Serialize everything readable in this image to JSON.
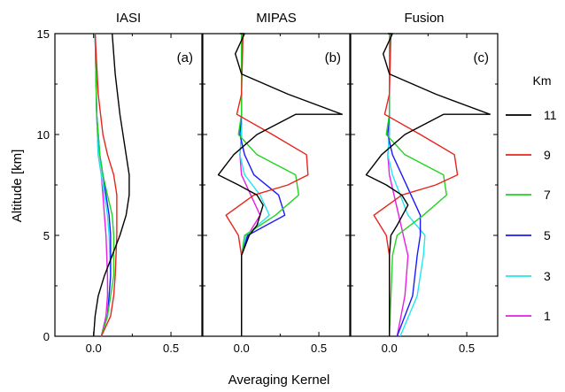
{
  "figure": {
    "ylabel": "Altitude [km]",
    "xlabel": "Averaging Kernel",
    "legend_title": "Km"
  },
  "colors": {
    "11": "#000000",
    "9": "#e8241c",
    "7": "#22d322",
    "5": "#1a1aff",
    "3": "#22e6f0",
    "1": "#e61ee6"
  },
  "chart_data": [
    {
      "type": "line",
      "title": "IASI",
      "panel_label": "(a)",
      "xlim": [
        -0.25,
        0.7
      ],
      "ylim": [
        0,
        15
      ],
      "x_ticks": [
        "0.0",
        "0.5"
      ],
      "y_ticks": [
        "0",
        "5",
        "10",
        "15"
      ],
      "series": [
        {
          "name": "11",
          "x": [
            0.0,
            0.01,
            0.03,
            0.07,
            0.12,
            0.17,
            0.21,
            0.23,
            0.23,
            0.21,
            0.17,
            0.14,
            0.12
          ],
          "y": [
            0,
            1,
            2,
            3,
            4,
            5,
            6,
            7,
            8,
            9,
            11,
            13,
            15
          ]
        },
        {
          "name": "9",
          "x": [
            0.05,
            0.11,
            0.13,
            0.14,
            0.15,
            0.15,
            0.13,
            0.09,
            0.06,
            0.03,
            0.01
          ],
          "y": [
            0,
            1,
            2,
            3,
            5,
            7,
            8,
            9,
            10,
            12,
            15
          ]
        },
        {
          "name": "7",
          "x": [
            0.05,
            0.09,
            0.11,
            0.13,
            0.13,
            0.12,
            0.09,
            0.06,
            0.04,
            0.02,
            0.01
          ],
          "y": [
            0,
            1,
            2,
            3,
            5,
            6,
            7,
            8,
            9,
            11,
            15
          ]
        },
        {
          "name": "5",
          "x": [
            0.05,
            0.09,
            0.1,
            0.11,
            0.11,
            0.1,
            0.08,
            0.06,
            0.04,
            0.02,
            0.01
          ],
          "y": [
            0,
            1,
            2,
            3,
            5,
            6,
            7,
            8,
            9,
            11,
            15
          ]
        },
        {
          "name": "3",
          "x": [
            0.05,
            0.09,
            0.1,
            0.11,
            0.1,
            0.09,
            0.07,
            0.05,
            0.03,
            0.02,
            0.01
          ],
          "y": [
            0,
            1,
            2,
            3,
            5,
            6,
            7,
            8,
            9,
            11,
            15
          ]
        },
        {
          "name": "1",
          "x": [
            0.05,
            0.08,
            0.09,
            0.09,
            0.08,
            0.07,
            0.06,
            0.05,
            0.03,
            0.02,
            0.01
          ],
          "y": [
            0,
            1,
            2,
            3,
            5,
            6,
            7,
            8,
            9,
            11,
            15
          ]
        }
      ]
    },
    {
      "type": "line",
      "title": "MIPAS",
      "panel_label": "(b)",
      "xlim": [
        -0.25,
        0.7
      ],
      "ylim": [
        0,
        15
      ],
      "x_ticks": [
        "0.0",
        "0.5"
      ],
      "y_ticks": [
        "0",
        "5",
        "10",
        "15"
      ],
      "series": [
        {
          "name": "11",
          "x": [
            0.0,
            0.0,
            0.05,
            0.1,
            0.14,
            0.1,
            -0.02,
            -0.15,
            -0.05,
            0.1,
            0.35,
            0.65,
            0.3,
            0.0,
            -0.04,
            0.02,
            -0.01
          ],
          "y": [
            0,
            4,
            5,
            5.5,
            6.5,
            7,
            7.5,
            8,
            9,
            10,
            11,
            11,
            12,
            13,
            14,
            15,
            15
          ]
        },
        {
          "name": "9",
          "x": [
            0.0,
            0.0,
            -0.02,
            -0.1,
            0.08,
            0.3,
            0.43,
            0.42,
            0.2,
            -0.03,
            0.0,
            0.01
          ],
          "y": [
            0,
            4,
            5,
            6,
            7,
            7.5,
            8,
            9,
            10,
            11,
            12,
            15
          ]
        },
        {
          "name": "7",
          "x": [
            0.0,
            0.0,
            0.02,
            0.22,
            0.37,
            0.35,
            0.1,
            -0.02,
            0.0,
            0.0
          ],
          "y": [
            0,
            4,
            5,
            6,
            7,
            8,
            9,
            10,
            11,
            15
          ]
        },
        {
          "name": "5",
          "x": [
            0.0,
            0.0,
            0.04,
            0.28,
            0.24,
            0.08,
            0.02,
            -0.01,
            0.0,
            0.0
          ],
          "y": [
            0,
            4,
            5,
            6,
            7,
            8,
            9,
            10,
            11,
            15
          ]
        },
        {
          "name": "3",
          "x": [
            0.0,
            0.0,
            0.03,
            0.18,
            0.12,
            0.02,
            -0.01,
            0.0,
            0.0
          ],
          "y": [
            0,
            4,
            5,
            6,
            7,
            8,
            9,
            10,
            15
          ]
        },
        {
          "name": "1",
          "x": [
            0.0,
            0.0,
            0.04,
            0.12,
            0.06,
            0.0,
            -0.01,
            0.0,
            0.0
          ],
          "y": [
            0,
            4,
            5,
            6,
            7,
            8,
            9,
            10,
            15
          ]
        }
      ]
    },
    {
      "type": "line",
      "title": "Fusion",
      "panel_label": "(c)",
      "xlim": [
        -0.25,
        0.7
      ],
      "ylim": [
        0,
        15
      ],
      "x_ticks": [
        "0.0",
        "0.5"
      ],
      "y_ticks": [
        "0",
        "5",
        "10",
        "15"
      ],
      "series": [
        {
          "name": "11",
          "x": [
            0.0,
            0.0,
            0.01,
            0.05,
            0.12,
            0.08,
            -0.02,
            -0.15,
            -0.05,
            0.1,
            0.35,
            0.65,
            0.3,
            0.0,
            -0.04,
            0.02,
            -0.01
          ],
          "y": [
            0,
            4,
            5,
            5.5,
            6.5,
            7,
            7.5,
            8,
            9,
            10,
            11,
            11,
            12,
            13,
            14,
            15,
            15
          ]
        },
        {
          "name": "9",
          "x": [
            0.0,
            0.0,
            -0.02,
            -0.1,
            0.08,
            0.3,
            0.44,
            0.42,
            0.2,
            -0.03,
            0.0,
            0.01
          ],
          "y": [
            0,
            4,
            5,
            6,
            7,
            7.5,
            8,
            9,
            10,
            11,
            12,
            15
          ]
        },
        {
          "name": "7",
          "x": [
            0.0,
            0.02,
            0.05,
            0.22,
            0.37,
            0.35,
            0.1,
            -0.02,
            0.0,
            0.0
          ],
          "y": [
            0,
            4,
            5,
            6,
            7,
            8,
            9,
            10,
            11,
            15
          ]
        },
        {
          "name": "5",
          "x": [
            0.05,
            0.15,
            0.18,
            0.2,
            0.2,
            0.08,
            0.02,
            -0.01,
            0.0,
            0.0
          ],
          "y": [
            0,
            2,
            4,
            5,
            6,
            8,
            9,
            10,
            11,
            15
          ]
        },
        {
          "name": "3",
          "x": [
            0.07,
            0.18,
            0.22,
            0.23,
            0.12,
            0.02,
            -0.01,
            0.0,
            0.0
          ],
          "y": [
            0,
            2,
            4,
            5,
            6,
            8,
            9,
            10,
            15
          ]
        },
        {
          "name": "1",
          "x": [
            0.05,
            0.1,
            0.12,
            0.06,
            0.0,
            -0.01,
            0.0,
            0.0
          ],
          "y": [
            0,
            2,
            4,
            6,
            8,
            9,
            10,
            15
          ]
        }
      ]
    }
  ],
  "legend": [
    {
      "name": "11",
      "label": "11"
    },
    {
      "name": "9",
      "label": "9"
    },
    {
      "name": "7",
      "label": "7"
    },
    {
      "name": "5",
      "label": "5"
    },
    {
      "name": "3",
      "label": "3"
    },
    {
      "name": "1",
      "label": "1"
    }
  ]
}
